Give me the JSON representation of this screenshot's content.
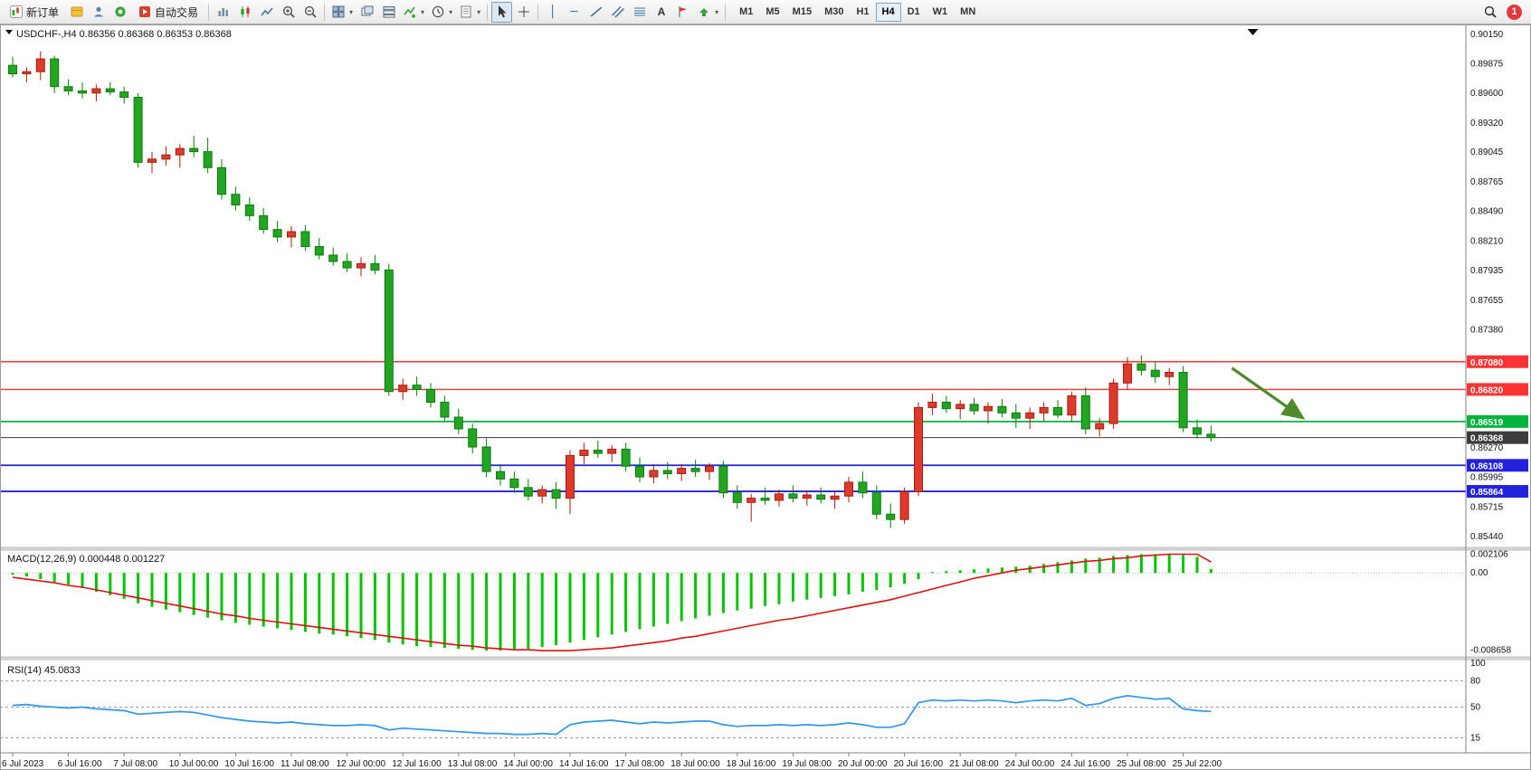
{
  "toolbar": {
    "new_order_label": "新订单",
    "autotrade_label": "自动交易",
    "timeframes": [
      "M1",
      "M5",
      "M15",
      "M30",
      "H1",
      "H4",
      "D1",
      "W1",
      "MN"
    ],
    "active_timeframe": "H4",
    "notification_count": "1",
    "icons": [
      "new-order",
      "chart-box",
      "profile",
      "community",
      "autotrade",
      "bar-chart",
      "candle-chart",
      "line-chart",
      "zoom-in",
      "zoom-out",
      "tile-windows",
      "cascade-windows",
      "window-list",
      "indicators",
      "timeframes-clock",
      "template",
      "cursor",
      "crosshair",
      "vertical-line",
      "horizontal-line",
      "trendline",
      "channel",
      "fibonacci",
      "text",
      "label",
      "shapes",
      "search",
      "notification"
    ]
  },
  "chart_data": {
    "type": "candlestick",
    "symbol": "USDCHF-,H4",
    "ohlc": {
      "open": "0.86356",
      "high": "0.86368",
      "low": "0.86353",
      "close": "0.86368"
    },
    "colors": {
      "down": "#22a522",
      "down_border": "#0c7a0c",
      "up": "#dd3a2c",
      "up_border": "#a61d12",
      "bg": "#ffffff"
    },
    "price_axis": {
      "min": 0.8544,
      "max": 0.9015,
      "ticks": [
        0.9015,
        0.89875,
        0.896,
        0.8932,
        0.89045,
        0.88765,
        0.8849,
        0.8821,
        0.87935,
        0.87655,
        0.8738,
        0.8627,
        0.85995,
        0.85715,
        0.8544
      ]
    },
    "hlines": [
      {
        "price": 0.8708,
        "label": "0.87080",
        "color": "#fe3434",
        "width": 1.4
      },
      {
        "price": 0.8682,
        "label": "0.86820",
        "color": "#fe3434",
        "width": 1.4
      },
      {
        "price": 0.86519,
        "label": "0.86519",
        "color": "#00b43c",
        "width": 1.8
      },
      {
        "price": 0.86368,
        "label": "0.86368",
        "color": "#3c3c3c",
        "width": 1,
        "bid": true
      },
      {
        "price": 0.86108,
        "label": "0.86108",
        "color": "#2222dd",
        "width": 1.8
      },
      {
        "price": 0.85864,
        "label": "0.85864",
        "color": "#2222dd",
        "width": 1.8
      }
    ],
    "candles": [
      [
        0.8986,
        0.8994,
        0.8975,
        0.8978
      ],
      [
        0.8978,
        0.8984,
        0.897,
        0.898
      ],
      [
        0.898,
        0.8999,
        0.8972,
        0.8992
      ],
      [
        0.8992,
        0.8995,
        0.896,
        0.8966
      ],
      [
        0.8966,
        0.8973,
        0.8958,
        0.8962
      ],
      [
        0.8962,
        0.897,
        0.8955,
        0.896
      ],
      [
        0.896,
        0.8968,
        0.8952,
        0.8964
      ],
      [
        0.8964,
        0.897,
        0.8958,
        0.8961
      ],
      [
        0.8961,
        0.8966,
        0.895,
        0.8956
      ],
      [
        0.8956,
        0.896,
        0.889,
        0.8895
      ],
      [
        0.8895,
        0.8905,
        0.8885,
        0.8898
      ],
      [
        0.8898,
        0.891,
        0.8892,
        0.8902
      ],
      [
        0.8902,
        0.8912,
        0.889,
        0.8908
      ],
      [
        0.8908,
        0.892,
        0.89,
        0.8905
      ],
      [
        0.8905,
        0.8918,
        0.8885,
        0.889
      ],
      [
        0.889,
        0.8898,
        0.886,
        0.8865
      ],
      [
        0.8865,
        0.8872,
        0.885,
        0.8855
      ],
      [
        0.8855,
        0.8862,
        0.884,
        0.8845
      ],
      [
        0.8845,
        0.8852,
        0.8828,
        0.8832
      ],
      [
        0.8832,
        0.884,
        0.882,
        0.8825
      ],
      [
        0.8825,
        0.8835,
        0.8815,
        0.883
      ],
      [
        0.883,
        0.8836,
        0.8812,
        0.8816
      ],
      [
        0.8816,
        0.8824,
        0.8804,
        0.8808
      ],
      [
        0.8808,
        0.8815,
        0.8798,
        0.8802
      ],
      [
        0.8802,
        0.881,
        0.8792,
        0.8796
      ],
      [
        0.8796,
        0.8806,
        0.8788,
        0.88
      ],
      [
        0.88,
        0.8808,
        0.879,
        0.8794
      ],
      [
        0.8794,
        0.88,
        0.8676,
        0.868
      ],
      [
        0.868,
        0.8692,
        0.8672,
        0.8686
      ],
      [
        0.8686,
        0.8694,
        0.8676,
        0.8682
      ],
      [
        0.8682,
        0.8688,
        0.8665,
        0.867
      ],
      [
        0.867,
        0.8676,
        0.8652,
        0.8656
      ],
      [
        0.8656,
        0.8664,
        0.864,
        0.8645
      ],
      [
        0.8645,
        0.865,
        0.8622,
        0.8628
      ],
      [
        0.8628,
        0.8636,
        0.86,
        0.8605
      ],
      [
        0.8605,
        0.8612,
        0.8592,
        0.8598
      ],
      [
        0.8598,
        0.8605,
        0.8585,
        0.859
      ],
      [
        0.859,
        0.8598,
        0.8578,
        0.8582
      ],
      [
        0.8582,
        0.8592,
        0.8575,
        0.8588
      ],
      [
        0.8588,
        0.8595,
        0.857,
        0.858
      ],
      [
        0.858,
        0.8625,
        0.8565,
        0.862
      ],
      [
        0.862,
        0.8632,
        0.8612,
        0.8625
      ],
      [
        0.8625,
        0.8634,
        0.8618,
        0.8622
      ],
      [
        0.8622,
        0.863,
        0.8614,
        0.8626
      ],
      [
        0.8626,
        0.8632,
        0.8605,
        0.861
      ],
      [
        0.861,
        0.8618,
        0.8595,
        0.86
      ],
      [
        0.86,
        0.8612,
        0.8594,
        0.8606
      ],
      [
        0.8606,
        0.8614,
        0.8598,
        0.8603
      ],
      [
        0.8603,
        0.8612,
        0.8596,
        0.8608
      ],
      [
        0.8608,
        0.8616,
        0.86,
        0.8605
      ],
      [
        0.8605,
        0.8613,
        0.8597,
        0.861
      ],
      [
        0.861,
        0.8615,
        0.858,
        0.8585
      ],
      [
        0.8585,
        0.8592,
        0.857,
        0.8576
      ],
      [
        0.8576,
        0.8584,
        0.8558,
        0.858
      ],
      [
        0.858,
        0.859,
        0.8574,
        0.8578
      ],
      [
        0.8578,
        0.8588,
        0.8572,
        0.8584
      ],
      [
        0.8584,
        0.8592,
        0.8576,
        0.858
      ],
      [
        0.858,
        0.8587,
        0.8573,
        0.8583
      ],
      [
        0.8583,
        0.859,
        0.8575,
        0.8579
      ],
      [
        0.8579,
        0.8586,
        0.857,
        0.8582
      ],
      [
        0.8582,
        0.86,
        0.8576,
        0.8595
      ],
      [
        0.8595,
        0.8605,
        0.858,
        0.8585
      ],
      [
        0.8585,
        0.8592,
        0.856,
        0.8565
      ],
      [
        0.8565,
        0.8575,
        0.8552,
        0.856
      ],
      [
        0.856,
        0.859,
        0.8556,
        0.8586
      ],
      [
        0.8586,
        0.867,
        0.8582,
        0.8665
      ],
      [
        0.8665,
        0.8678,
        0.8658,
        0.867
      ],
      [
        0.867,
        0.8676,
        0.866,
        0.8664
      ],
      [
        0.8664,
        0.8672,
        0.8654,
        0.8668
      ],
      [
        0.8668,
        0.8674,
        0.8658,
        0.8662
      ],
      [
        0.8662,
        0.867,
        0.865,
        0.8666
      ],
      [
        0.8666,
        0.8673,
        0.8656,
        0.866
      ],
      [
        0.866,
        0.8668,
        0.8646,
        0.8655
      ],
      [
        0.8655,
        0.8665,
        0.8645,
        0.866
      ],
      [
        0.866,
        0.867,
        0.8652,
        0.8665
      ],
      [
        0.8665,
        0.8672,
        0.8655,
        0.8658
      ],
      [
        0.8658,
        0.868,
        0.8652,
        0.8676
      ],
      [
        0.8676,
        0.8684,
        0.864,
        0.8645
      ],
      [
        0.8645,
        0.8655,
        0.8638,
        0.865
      ],
      [
        0.865,
        0.8692,
        0.8645,
        0.8688
      ],
      [
        0.8688,
        0.8712,
        0.8682,
        0.8706
      ],
      [
        0.8706,
        0.8714,
        0.8695,
        0.87
      ],
      [
        0.87,
        0.8708,
        0.8688,
        0.8694
      ],
      [
        0.8694,
        0.8702,
        0.8686,
        0.8698
      ],
      [
        0.8698,
        0.8704,
        0.8642,
        0.8646
      ],
      [
        0.8646,
        0.8654,
        0.8636,
        0.864
      ],
      [
        0.864,
        0.8648,
        0.8633,
        0.86368
      ]
    ],
    "macd": {
      "label": "MACD(12,26,9)",
      "values_label": "0.000448 0.001227",
      "axis_labels": [
        {
          "value": 0.002106,
          "text": "0.002106"
        },
        {
          "value": 0,
          "text": "0.00"
        },
        {
          "value": -0.008658,
          "text": "-0.008658"
        }
      ],
      "range": {
        "min": -0.0092,
        "max": 0.00235
      },
      "hist_color": "#00c400",
      "signal_color": "#e01010",
      "hist": [
        -0.0002,
        -0.0004,
        -0.0007,
        -0.001,
        -0.0013,
        -0.0017,
        -0.0021,
        -0.0025,
        -0.0029,
        -0.0034,
        -0.0038,
        -0.0041,
        -0.0044,
        -0.0047,
        -0.005,
        -0.0053,
        -0.0056,
        -0.0058,
        -0.006,
        -0.0062,
        -0.0064,
        -0.0066,
        -0.0068,
        -0.0069,
        -0.0071,
        -0.0073,
        -0.0075,
        -0.0078,
        -0.008,
        -0.0082,
        -0.0083,
        -0.0084,
        -0.0085,
        -0.0086,
        -0.0087,
        -0.0087,
        -0.0086,
        -0.0085,
        -0.0083,
        -0.0081,
        -0.0078,
        -0.0075,
        -0.0072,
        -0.0069,
        -0.0066,
        -0.0063,
        -0.006,
        -0.0057,
        -0.0054,
        -0.0051,
        -0.0048,
        -0.0045,
        -0.0042,
        -0.004,
        -0.0037,
        -0.0035,
        -0.0032,
        -0.003,
        -0.0028,
        -0.0026,
        -0.0024,
        -0.0021,
        -0.0019,
        -0.0016,
        -0.0012,
        -0.0007,
        0.0001,
        0.0002,
        0.0003,
        0.0004,
        0.0005,
        0.0006,
        0.0007,
        0.0008,
        0.001,
        0.0012,
        0.0014,
        0.0016,
        0.0017,
        0.0019,
        0.002,
        0.0021,
        0.0021,
        0.0021,
        0.002,
        0.0018,
        0.000448
      ],
      "signal": [
        -0.0005,
        -0.0007,
        -0.0009,
        -0.0011,
        -0.0014,
        -0.0016,
        -0.0019,
        -0.0022,
        -0.0025,
        -0.0028,
        -0.0031,
        -0.0034,
        -0.0037,
        -0.004,
        -0.0043,
        -0.0046,
        -0.0048,
        -0.0051,
        -0.0053,
        -0.0055,
        -0.0057,
        -0.0059,
        -0.0061,
        -0.0063,
        -0.0065,
        -0.0067,
        -0.0069,
        -0.0071,
        -0.0073,
        -0.0075,
        -0.0077,
        -0.0079,
        -0.0081,
        -0.0082,
        -0.0084,
        -0.0085,
        -0.0086,
        -0.0086,
        -0.0087,
        -0.0087,
        -0.0087,
        -0.0086,
        -0.0085,
        -0.0084,
        -0.0082,
        -0.008,
        -0.0078,
        -0.0076,
        -0.0073,
        -0.0071,
        -0.0068,
        -0.0065,
        -0.0062,
        -0.0059,
        -0.0056,
        -0.0053,
        -0.0051,
        -0.0048,
        -0.0045,
        -0.0042,
        -0.0039,
        -0.0036,
        -0.0033,
        -0.003,
        -0.0026,
        -0.0022,
        -0.0018,
        -0.0014,
        -0.001,
        -0.0006,
        -0.0003,
        0,
        0.0003,
        0.0005,
        0.0007,
        0.0009,
        0.0011,
        0.0013,
        0.0014,
        0.0016,
        0.0017,
        0.0019,
        0.002,
        0.0021,
        0.0021,
        0.0021,
        0.001227
      ]
    },
    "rsi": {
      "label": "RSI(14)",
      "value_label": "45.0833",
      "levels": [
        80,
        50,
        15
      ],
      "axis_labels": [
        {
          "value": 100,
          "text": "100"
        },
        {
          "value": 80,
          "text": "80"
        },
        {
          "value": 50,
          "text": "50"
        },
        {
          "value": 15,
          "text": "15"
        }
      ],
      "line_color": "#2f96f3",
      "values": [
        52,
        53,
        51,
        50,
        49,
        50,
        48,
        47,
        46,
        42,
        43,
        44,
        45,
        44,
        41,
        38,
        36,
        34,
        33,
        32,
        33,
        31,
        30,
        29,
        29,
        30,
        29,
        24,
        26,
        25,
        24,
        23,
        22,
        21,
        20,
        20,
        19,
        19,
        20,
        19,
        30,
        33,
        34,
        35,
        33,
        31,
        33,
        32,
        33,
        34,
        34,
        30,
        28,
        29,
        29,
        30,
        29,
        30,
        29,
        30,
        32,
        30,
        27,
        27,
        31,
        55,
        58,
        57,
        58,
        57,
        58,
        57,
        55,
        57,
        58,
        57,
        60,
        52,
        54,
        60,
        63,
        61,
        59,
        60,
        48,
        46,
        45.08
      ]
    },
    "time_labels": [
      "6 Jul 2023",
      "6 Jul 16:00",
      "7 Jul 08:00",
      "10 Jul 00:00",
      "10 Jul 16:00",
      "11 Jul 08:00",
      "12 Jul 00:00",
      "12 Jul 16:00",
      "13 Jul 08:00",
      "14 Jul 00:00",
      "14 Jul 16:00",
      "17 Jul 08:00",
      "18 Jul 00:00",
      "18 Jul 16:00",
      "19 Jul 08:00",
      "20 Jul 00:00",
      "20 Jul 16:00",
      "21 Jul 08:00",
      "24 Jul 00:00",
      "24 Jul 16:00",
      "25 Jul 08:00",
      "25 Jul 22:00"
    ],
    "label_every": 4,
    "annotation_arrow": {
      "from_index": 87.5,
      "from_price": 0.8702,
      "to_index": 92.5,
      "to_price": 0.8656,
      "color": "#4e8a2d"
    }
  }
}
